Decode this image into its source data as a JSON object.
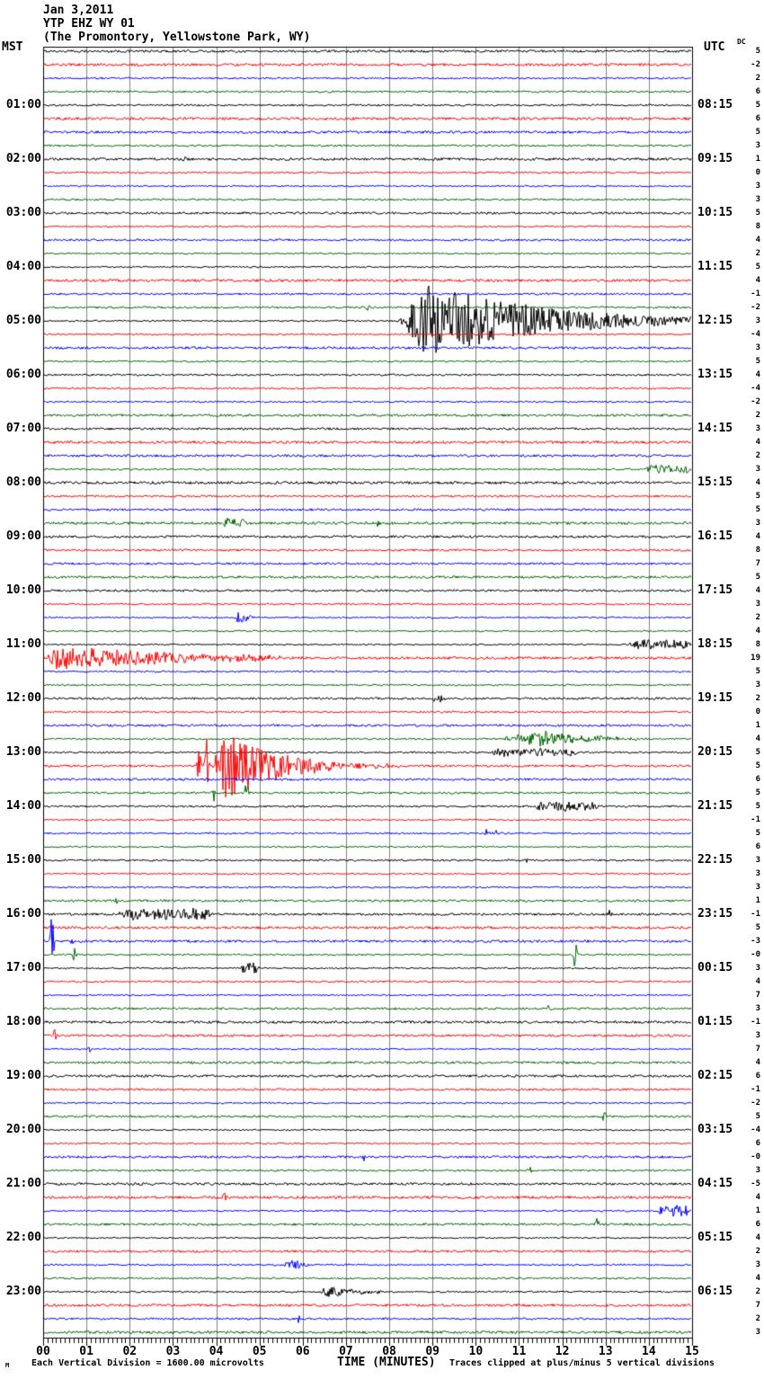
{
  "title": {
    "line1": "Jan 3,2011",
    "line2": "YTP EHZ WY 01",
    "line3": "(The Promontory, Yellowstone Park, WY)"
  },
  "axes": {
    "left_header": "MST",
    "right_header": "UTC",
    "dc_header": "DC",
    "x_label": "TIME (MINUTES)",
    "x_ticks": [
      "00",
      "01",
      "02",
      "03",
      "04",
      "05",
      "06",
      "07",
      "08",
      "09",
      "10",
      "11",
      "12",
      "13",
      "14",
      "15"
    ]
  },
  "footer": {
    "left": "Each Vertical Division = 1600.00 microvolts",
    "right": "Traces clipped at plus/minus 5 vertical divisions",
    "watermark": "M"
  },
  "colors": {
    "trace_cycle": {
      "black": "#000000",
      "red": "#ff0000",
      "blue": "#0000ff",
      "green": "#006600"
    },
    "grid": "#808080",
    "border": "#000000",
    "background": "#ffffff"
  },
  "chart_data": {
    "type": "line",
    "subtype": "helicorder-seismogram",
    "station": "YTP EHZ WY 01",
    "location": "The Promontory, Yellowstone Park, WY",
    "date": "Jan 3,2011",
    "minutes_per_line": 15,
    "lines_per_hour": 4,
    "x_range_minutes": [
      0,
      15
    ],
    "clip_divisions": 5,
    "microvolts_per_division": "1600.00",
    "rows": [
      {
        "color": "black",
        "mst": "",
        "utc": "",
        "dc": "5"
      },
      {
        "color": "red",
        "mst": "",
        "utc": "",
        "dc": "-2"
      },
      {
        "color": "blue",
        "mst": "",
        "utc": "",
        "dc": "2"
      },
      {
        "color": "green",
        "mst": "",
        "utc": "",
        "dc": "6"
      },
      {
        "color": "black",
        "mst": "01:00",
        "utc": "08:15",
        "dc": "5"
      },
      {
        "color": "red",
        "mst": "",
        "utc": "",
        "dc": "6"
      },
      {
        "color": "blue",
        "mst": "",
        "utc": "",
        "dc": "5"
      },
      {
        "color": "green",
        "mst": "",
        "utc": "",
        "dc": "3"
      },
      {
        "color": "black",
        "mst": "02:00",
        "utc": "09:15",
        "dc": "1"
      },
      {
        "color": "red",
        "mst": "",
        "utc": "",
        "dc": "0"
      },
      {
        "color": "blue",
        "mst": "",
        "utc": "",
        "dc": "3"
      },
      {
        "color": "green",
        "mst": "",
        "utc": "",
        "dc": "3"
      },
      {
        "color": "black",
        "mst": "03:00",
        "utc": "10:15",
        "dc": "5"
      },
      {
        "color": "red",
        "mst": "",
        "utc": "",
        "dc": "8"
      },
      {
        "color": "blue",
        "mst": "",
        "utc": "",
        "dc": "4"
      },
      {
        "color": "green",
        "mst": "",
        "utc": "",
        "dc": "2"
      },
      {
        "color": "black",
        "mst": "04:00",
        "utc": "11:15",
        "dc": "5"
      },
      {
        "color": "red",
        "mst": "",
        "utc": "",
        "dc": "4"
      },
      {
        "color": "blue",
        "mst": "",
        "utc": "",
        "dc": "-1"
      },
      {
        "color": "green",
        "mst": "",
        "utc": "",
        "dc": "-2"
      },
      {
        "color": "black",
        "mst": "05:00",
        "utc": "12:15",
        "dc": "3"
      },
      {
        "color": "red",
        "mst": "",
        "utc": "",
        "dc": "-4"
      },
      {
        "color": "blue",
        "mst": "",
        "utc": "",
        "dc": "3"
      },
      {
        "color": "green",
        "mst": "",
        "utc": "",
        "dc": "5"
      },
      {
        "color": "black",
        "mst": "06:00",
        "utc": "13:15",
        "dc": "4"
      },
      {
        "color": "red",
        "mst": "",
        "utc": "",
        "dc": "-4"
      },
      {
        "color": "blue",
        "mst": "",
        "utc": "",
        "dc": "-2"
      },
      {
        "color": "green",
        "mst": "",
        "utc": "",
        "dc": "2"
      },
      {
        "color": "black",
        "mst": "07:00",
        "utc": "14:15",
        "dc": "3"
      },
      {
        "color": "red",
        "mst": "",
        "utc": "",
        "dc": "4"
      },
      {
        "color": "blue",
        "mst": "",
        "utc": "",
        "dc": "2"
      },
      {
        "color": "green",
        "mst": "",
        "utc": "",
        "dc": "3"
      },
      {
        "color": "black",
        "mst": "08:00",
        "utc": "15:15",
        "dc": "4"
      },
      {
        "color": "red",
        "mst": "",
        "utc": "",
        "dc": "5"
      },
      {
        "color": "blue",
        "mst": "",
        "utc": "",
        "dc": "5"
      },
      {
        "color": "green",
        "mst": "",
        "utc": "",
        "dc": "3"
      },
      {
        "color": "black",
        "mst": "09:00",
        "utc": "16:15",
        "dc": "4"
      },
      {
        "color": "red",
        "mst": "",
        "utc": "",
        "dc": "8"
      },
      {
        "color": "blue",
        "mst": "",
        "utc": "",
        "dc": "7"
      },
      {
        "color": "green",
        "mst": "",
        "utc": "",
        "dc": "5"
      },
      {
        "color": "black",
        "mst": "10:00",
        "utc": "17:15",
        "dc": "4"
      },
      {
        "color": "red",
        "mst": "",
        "utc": "",
        "dc": "3"
      },
      {
        "color": "blue",
        "mst": "",
        "utc": "",
        "dc": "2"
      },
      {
        "color": "green",
        "mst": "",
        "utc": "",
        "dc": "4"
      },
      {
        "color": "black",
        "mst": "11:00",
        "utc": "18:15",
        "dc": "8"
      },
      {
        "color": "red",
        "mst": "",
        "utc": "",
        "dc": "19"
      },
      {
        "color": "blue",
        "mst": "",
        "utc": "",
        "dc": "5"
      },
      {
        "color": "green",
        "mst": "",
        "utc": "",
        "dc": "3"
      },
      {
        "color": "black",
        "mst": "12:00",
        "utc": "19:15",
        "dc": "2"
      },
      {
        "color": "red",
        "mst": "",
        "utc": "",
        "dc": "0"
      },
      {
        "color": "blue",
        "mst": "",
        "utc": "",
        "dc": "1"
      },
      {
        "color": "green",
        "mst": "",
        "utc": "",
        "dc": "4"
      },
      {
        "color": "black",
        "mst": "13:00",
        "utc": "20:15",
        "dc": "5"
      },
      {
        "color": "red",
        "mst": "",
        "utc": "",
        "dc": "5"
      },
      {
        "color": "blue",
        "mst": "",
        "utc": "",
        "dc": "6"
      },
      {
        "color": "green",
        "mst": "",
        "utc": "",
        "dc": "5"
      },
      {
        "color": "black",
        "mst": "14:00",
        "utc": "21:15",
        "dc": "5"
      },
      {
        "color": "red",
        "mst": "",
        "utc": "",
        "dc": "-1"
      },
      {
        "color": "blue",
        "mst": "",
        "utc": "",
        "dc": "5"
      },
      {
        "color": "green",
        "mst": "",
        "utc": "",
        "dc": "6"
      },
      {
        "color": "black",
        "mst": "15:00",
        "utc": "22:15",
        "dc": "3"
      },
      {
        "color": "red",
        "mst": "",
        "utc": "",
        "dc": "3"
      },
      {
        "color": "blue",
        "mst": "",
        "utc": "",
        "dc": "3"
      },
      {
        "color": "green",
        "mst": "",
        "utc": "",
        "dc": "1"
      },
      {
        "color": "black",
        "mst": "16:00",
        "utc": "23:15",
        "dc": "-1"
      },
      {
        "color": "red",
        "mst": "",
        "utc": "",
        "dc": "5"
      },
      {
        "color": "blue",
        "mst": "",
        "utc": "",
        "dc": "-3"
      },
      {
        "color": "green",
        "mst": "",
        "utc": "",
        "dc": "-0"
      },
      {
        "color": "black",
        "mst": "17:00",
        "utc": "00:15",
        "dc": "3"
      },
      {
        "color": "red",
        "mst": "",
        "utc": "",
        "dc": "4"
      },
      {
        "color": "blue",
        "mst": "",
        "utc": "",
        "dc": "7"
      },
      {
        "color": "green",
        "mst": "",
        "utc": "",
        "dc": "3"
      },
      {
        "color": "black",
        "mst": "18:00",
        "utc": "01:15",
        "dc": "-1"
      },
      {
        "color": "red",
        "mst": "",
        "utc": "",
        "dc": "3"
      },
      {
        "color": "blue",
        "mst": "",
        "utc": "",
        "dc": "7"
      },
      {
        "color": "green",
        "mst": "",
        "utc": "",
        "dc": "4"
      },
      {
        "color": "black",
        "mst": "19:00",
        "utc": "02:15",
        "dc": "6"
      },
      {
        "color": "red",
        "mst": "",
        "utc": "",
        "dc": "-1"
      },
      {
        "color": "blue",
        "mst": "",
        "utc": "",
        "dc": "-2"
      },
      {
        "color": "green",
        "mst": "",
        "utc": "",
        "dc": "5"
      },
      {
        "color": "black",
        "mst": "20:00",
        "utc": "03:15",
        "dc": "-4"
      },
      {
        "color": "red",
        "mst": "",
        "utc": "",
        "dc": "6"
      },
      {
        "color": "blue",
        "mst": "",
        "utc": "",
        "dc": "-0"
      },
      {
        "color": "green",
        "mst": "",
        "utc": "",
        "dc": "3"
      },
      {
        "color": "black",
        "mst": "21:00",
        "utc": "04:15",
        "dc": "-5"
      },
      {
        "color": "red",
        "mst": "",
        "utc": "",
        "dc": "4"
      },
      {
        "color": "blue",
        "mst": "",
        "utc": "",
        "dc": "1"
      },
      {
        "color": "green",
        "mst": "",
        "utc": "",
        "dc": "6"
      },
      {
        "color": "black",
        "mst": "22:00",
        "utc": "05:15",
        "dc": "4"
      },
      {
        "color": "red",
        "mst": "",
        "utc": "",
        "dc": "2"
      },
      {
        "color": "blue",
        "mst": "",
        "utc": "",
        "dc": "3"
      },
      {
        "color": "green",
        "mst": "",
        "utc": "",
        "dc": "4"
      },
      {
        "color": "black",
        "mst": "23:00",
        "utc": "06:15",
        "dc": "2"
      },
      {
        "color": "red",
        "mst": "",
        "utc": "",
        "dc": "7"
      },
      {
        "color": "blue",
        "mst": "",
        "utc": "",
        "dc": "2"
      },
      {
        "color": "green",
        "mst": "",
        "utc": "",
        "dc": "3"
      }
    ],
    "events": [
      {
        "row": 8,
        "type": "spike",
        "t": 3.25,
        "amp": 4
      },
      {
        "row": 19,
        "type": "spike",
        "t": 7.5,
        "amp": 6
      },
      {
        "row": 20,
        "type": "burst",
        "t0": 8.2,
        "t1": 15.2,
        "amp": 40,
        "attack": 0.1,
        "decay": 2.2
      },
      {
        "row": 31,
        "type": "fuzz",
        "t0": 13.9,
        "t1": 15.0,
        "amp": 4
      },
      {
        "row": 35,
        "type": "fuzz",
        "t0": 4.15,
        "t1": 4.7,
        "amp": 5
      },
      {
        "row": 35,
        "type": "spike",
        "t": 7.75,
        "amp": 5
      },
      {
        "row": 42,
        "type": "burst",
        "t0": 4.4,
        "t1": 4.9,
        "amp": 8,
        "attack": 0.25,
        "decay": 1.5
      },
      {
        "row": 44,
        "type": "fuzz",
        "t0": 13.5,
        "t1": 15.0,
        "amp": 5
      },
      {
        "row": 45,
        "type": "burst",
        "t0": 0.05,
        "t1": 5.5,
        "amp": 13,
        "attack": 0.05,
        "decay": 1.6
      },
      {
        "row": 48,
        "type": "fuzz",
        "t0": 9.0,
        "t1": 9.35,
        "amp": 3
      },
      {
        "row": 51,
        "type": "burst",
        "t0": 10.5,
        "t1": 13.8,
        "amp": 9,
        "attack": 0.3,
        "decay": 1.8
      },
      {
        "row": 52,
        "type": "fuzz",
        "t0": 10.3,
        "t1": 12.4,
        "amp": 4
      },
      {
        "row": 53,
        "type": "spike",
        "t": 3.6,
        "amp": 26
      },
      {
        "row": 53,
        "type": "spike",
        "t": 3.78,
        "amp": 30
      },
      {
        "row": 53,
        "type": "burst",
        "t0": 3.9,
        "t1": 8.6,
        "amp": 40,
        "attack": 0.06,
        "decay": 3.5
      },
      {
        "row": 55,
        "type": "spike",
        "t": 3.95,
        "amp": 11
      },
      {
        "row": 55,
        "type": "spike",
        "t": 4.7,
        "amp": 12
      },
      {
        "row": 56,
        "type": "fuzz",
        "t0": 11.3,
        "t1": 12.9,
        "amp": 5
      },
      {
        "row": 58,
        "type": "fuzz",
        "t0": 10.2,
        "t1": 10.55,
        "amp": 4
      },
      {
        "row": 60,
        "type": "spike",
        "t": 11.15,
        "amp": 4
      },
      {
        "row": 63,
        "type": "spike",
        "t": 1.7,
        "amp": 5
      },
      {
        "row": 64,
        "type": "fuzz",
        "t0": 1.7,
        "t1": 4.0,
        "amp": 6
      },
      {
        "row": 64,
        "type": "spike",
        "t": 13.1,
        "amp": 7
      },
      {
        "row": 66,
        "type": "spike",
        "t": 0.2,
        "amp": 32
      },
      {
        "row": 66,
        "type": "spike",
        "t": 0.65,
        "amp": 6
      },
      {
        "row": 67,
        "type": "spike",
        "t": 0.72,
        "amp": 8
      },
      {
        "row": 67,
        "type": "spike",
        "t": 12.3,
        "amp": 20
      },
      {
        "row": 68,
        "type": "fuzz",
        "t0": 4.55,
        "t1": 5.0,
        "amp": 6
      },
      {
        "row": 71,
        "type": "spike",
        "t": 11.7,
        "amp": 6
      },
      {
        "row": 73,
        "type": "spike",
        "t": 0.28,
        "amp": 13
      },
      {
        "row": 74,
        "type": "spike",
        "t": 1.1,
        "amp": 6
      },
      {
        "row": 79,
        "type": "spike",
        "t": 12.95,
        "amp": 11
      },
      {
        "row": 82,
        "type": "spike",
        "t": 7.4,
        "amp": 6
      },
      {
        "row": 83,
        "type": "spike",
        "t": 11.25,
        "amp": 4
      },
      {
        "row": 85,
        "type": "spike",
        "t": 4.2,
        "amp": 5
      },
      {
        "row": 86,
        "type": "fuzz",
        "t0": 14.2,
        "t1": 14.95,
        "amp": 6
      },
      {
        "row": 87,
        "type": "spike",
        "t": 12.8,
        "amp": 9
      },
      {
        "row": 90,
        "type": "burst",
        "t0": 5.55,
        "t1": 6.15,
        "amp": 8,
        "attack": 0.3,
        "decay": 1.5
      },
      {
        "row": 92,
        "type": "burst",
        "t0": 6.35,
        "t1": 7.9,
        "amp": 7,
        "attack": 0.15,
        "decay": 1.8
      },
      {
        "row": 94,
        "type": "spike",
        "t": 5.9,
        "amp": 5
      }
    ]
  }
}
